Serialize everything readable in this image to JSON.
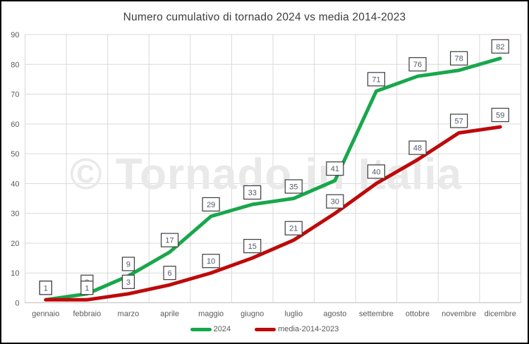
{
  "title": "Numero cumulativo di tornado 2024 vs media 2014-2023",
  "watermark": "© Tornado in Italia",
  "colors": {
    "series_2024": "#18A74B",
    "series_media": "#BE0A0A",
    "gridline": "#D9D9D9",
    "axis_line": "#BFBFBF",
    "axis_text": "#595959",
    "label_text": "#50596B",
    "label_border": "#3B3B3B",
    "label_fill": "#FFFFFF",
    "watermark": "#E9E9E9",
    "title_text": "#3D3D3D"
  },
  "chart_data": {
    "type": "line",
    "categories": [
      "gennaio",
      "febbraio",
      "marzo",
      "aprile",
      "maggio",
      "giugno",
      "luglio",
      "agosto",
      "settembre",
      "ottobre",
      "novembre",
      "dicembre"
    ],
    "series": [
      {
        "name": "2024",
        "color": "#18A74B",
        "values": [
          1,
          3,
          9,
          17,
          29,
          33,
          35,
          41,
          71,
          76,
          78,
          82
        ]
      },
      {
        "name": "media-2014-2023",
        "color": "#BE0A0A",
        "values": [
          1,
          1,
          3,
          6,
          10,
          15,
          21,
          30,
          40,
          48,
          57,
          59
        ]
      }
    ],
    "title": "Numero cumulativo di tornado 2024 vs media 2014-2023",
    "xlabel": "",
    "ylabel": "",
    "ylim": [
      0,
      90
    ],
    "yticks": [
      0,
      10,
      20,
      30,
      40,
      50,
      60,
      70,
      80,
      90
    ],
    "grid": true,
    "data_labels": true,
    "legend_position": "bottom"
  }
}
